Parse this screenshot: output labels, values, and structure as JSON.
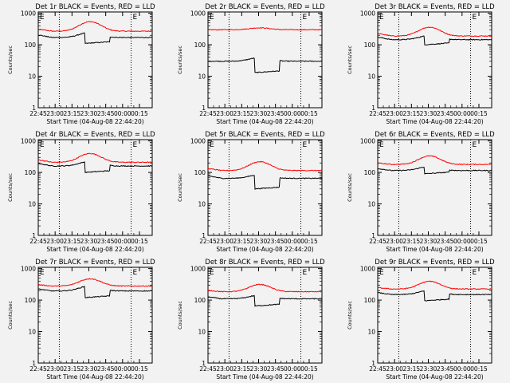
{
  "chart_data": {
    "type": "line",
    "x_tick_labels": [
      "22:45",
      "23:00",
      "23:15",
      "23:30",
      "23:45",
      "00:00",
      "00:15"
    ],
    "y_tick_labels": [
      "1",
      "10",
      "100",
      "1000"
    ],
    "yscale": "log",
    "ylim": [
      1,
      1100
    ],
    "ylabel": "Counts/sec",
    "xlabel": "Start Time (04-Aug-08 22:44:20)",
    "grid": false,
    "annotations": [
      "E",
      "E"
    ],
    "colors": {
      "events": "#000000",
      "lld": "#ff0000",
      "background": "#f2f2f2",
      "axes": "#000000"
    },
    "panels": [
      {
        "title": "Det 1r BLACK = Events, RED = LLD",
        "series": [
          {
            "name": "RED = LLD",
            "color": "#ff0000",
            "base": 270,
            "dip_base": 270,
            "hump": 2.0,
            "start": 1.15
          },
          {
            "name": "BLACK = Events",
            "color": "#000000",
            "base": 170,
            "dip_base": 110,
            "hump": 1.45,
            "start": 1.2
          }
        ]
      },
      {
        "title": "Det 2r BLACK = Events, RED = LLD",
        "series": [
          {
            "name": "RED = LLD",
            "color": "#ff0000",
            "base": 300,
            "dip_base": 300,
            "hump": 1.15,
            "start": 1.0
          },
          {
            "name": "BLACK = Events",
            "color": "#000000",
            "base": 30,
            "dip_base": 13,
            "hump": 1.3,
            "start": 1.0
          }
        ]
      },
      {
        "title": "Det 3r BLACK = Events, RED = LLD",
        "series": [
          {
            "name": "RED = LLD",
            "color": "#ff0000",
            "base": 190,
            "dip_base": 190,
            "hump": 1.9,
            "start": 1.2
          },
          {
            "name": "BLACK = Events",
            "color": "#000000",
            "base": 145,
            "dip_base": 100,
            "hump": 1.35,
            "start": 1.2
          }
        ]
      },
      {
        "title": "Det 4r BLACK = Events, RED = LLD",
        "series": [
          {
            "name": "RED = LLD",
            "color": "#ff0000",
            "base": 210,
            "dip_base": 210,
            "hump": 1.9,
            "start": 1.2
          },
          {
            "name": "BLACK = Events",
            "color": "#000000",
            "base": 160,
            "dip_base": 100,
            "hump": 1.4,
            "start": 1.2
          }
        ]
      },
      {
        "title": "Det 5r BLACK = Events, RED = LLD",
        "series": [
          {
            "name": "RED = LLD",
            "color": "#ff0000",
            "base": 115,
            "dip_base": 115,
            "hump": 1.9,
            "start": 1.15
          },
          {
            "name": "BLACK = Events",
            "color": "#000000",
            "base": 65,
            "dip_base": 30,
            "hump": 1.3,
            "start": 1.2
          }
        ]
      },
      {
        "title": "Det 6r BLACK = Events, RED = LLD",
        "series": [
          {
            "name": "RED = LLD",
            "color": "#ff0000",
            "base": 180,
            "dip_base": 180,
            "hump": 1.85,
            "start": 1.1
          },
          {
            "name": "BLACK = Events",
            "color": "#000000",
            "base": 115,
            "dip_base": 90,
            "hump": 1.35,
            "start": 1.15
          }
        ]
      },
      {
        "title": "Det 7r BLACK = Events, RED = LLD",
        "series": [
          {
            "name": "RED = LLD",
            "color": "#ff0000",
            "base": 280,
            "dip_base": 280,
            "hump": 1.7,
            "start": 1.1
          },
          {
            "name": "BLACK = Events",
            "color": "#000000",
            "base": 195,
            "dip_base": 120,
            "hump": 1.45,
            "start": 1.15
          }
        ]
      },
      {
        "title": "Det 8r BLACK = Events, RED = LLD",
        "series": [
          {
            "name": "RED = LLD",
            "color": "#ff0000",
            "base": 185,
            "dip_base": 185,
            "hump": 1.7,
            "start": 1.1
          },
          {
            "name": "BLACK = Events",
            "color": "#000000",
            "base": 110,
            "dip_base": 65,
            "hump": 1.3,
            "start": 1.15
          }
        ]
      },
      {
        "title": "Det 9r BLACK = Events, RED = LLD",
        "series": [
          {
            "name": "RED = LLD",
            "color": "#ff0000",
            "base": 225,
            "dip_base": 225,
            "hump": 1.75,
            "start": 1.1
          },
          {
            "name": "BLACK = Events",
            "color": "#000000",
            "base": 150,
            "dip_base": 95,
            "hump": 1.35,
            "start": 1.15
          }
        ]
      }
    ]
  }
}
